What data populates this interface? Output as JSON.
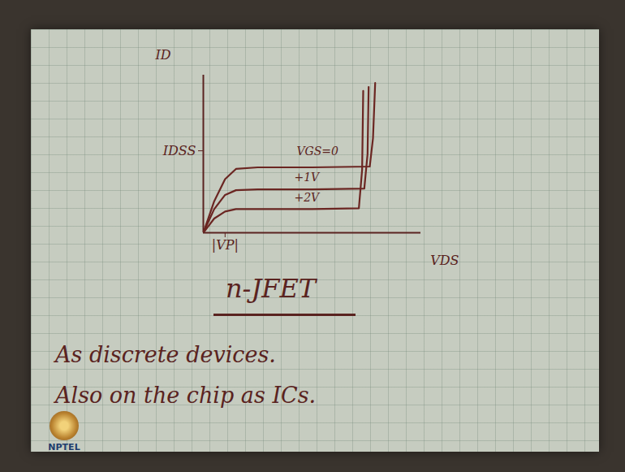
{
  "chart_data": {
    "type": "line",
    "x_label": "VDS",
    "y_label": "ID",
    "xlim": [
      0,
      20
    ],
    "ylim": [
      0,
      20
    ],
    "xticks": [
      {
        "value": 2,
        "label": "|VP|"
      }
    ],
    "yticks": [
      {
        "value": 10.4,
        "label": "IDSS"
      }
    ],
    "grid": false,
    "series": [
      {
        "name": "VGS=0",
        "color": "#6b2622",
        "x": [
          0,
          1,
          2,
          3,
          5,
          10,
          15.3,
          15.6,
          15.8
        ],
        "values": [
          0,
          4,
          6.8,
          8.1,
          8.3,
          8.3,
          8.4,
          12,
          19
        ]
      },
      {
        "name": "+1V",
        "color": "#6b2622",
        "x": [
          0,
          1,
          2,
          3,
          5,
          10,
          14.8,
          15.1,
          15.2
        ],
        "values": [
          0,
          3,
          4.8,
          5.4,
          5.5,
          5.5,
          5.6,
          10,
          18.5
        ]
      },
      {
        "name": "+2V",
        "color": "#6b2622",
        "x": [
          0,
          1,
          2,
          3,
          5,
          10,
          14.3,
          14.6,
          14.7
        ],
        "values": [
          0,
          1.8,
          2.7,
          3.0,
          3.0,
          3.0,
          3.1,
          8,
          18
        ]
      }
    ],
    "annotations": [
      {
        "text": "VGS=0",
        "x": 10.5,
        "y": 10.3
      },
      {
        "text": "+1V",
        "x": 9.5,
        "y": 7
      },
      {
        "text": "+2V",
        "x": 9.5,
        "y": 4.4
      }
    ]
  },
  "page": {
    "heading": "n-JFET",
    "lines": [
      "As discrete devices.",
      "Also on the chip as ICs."
    ],
    "logo": "NPTEL"
  }
}
